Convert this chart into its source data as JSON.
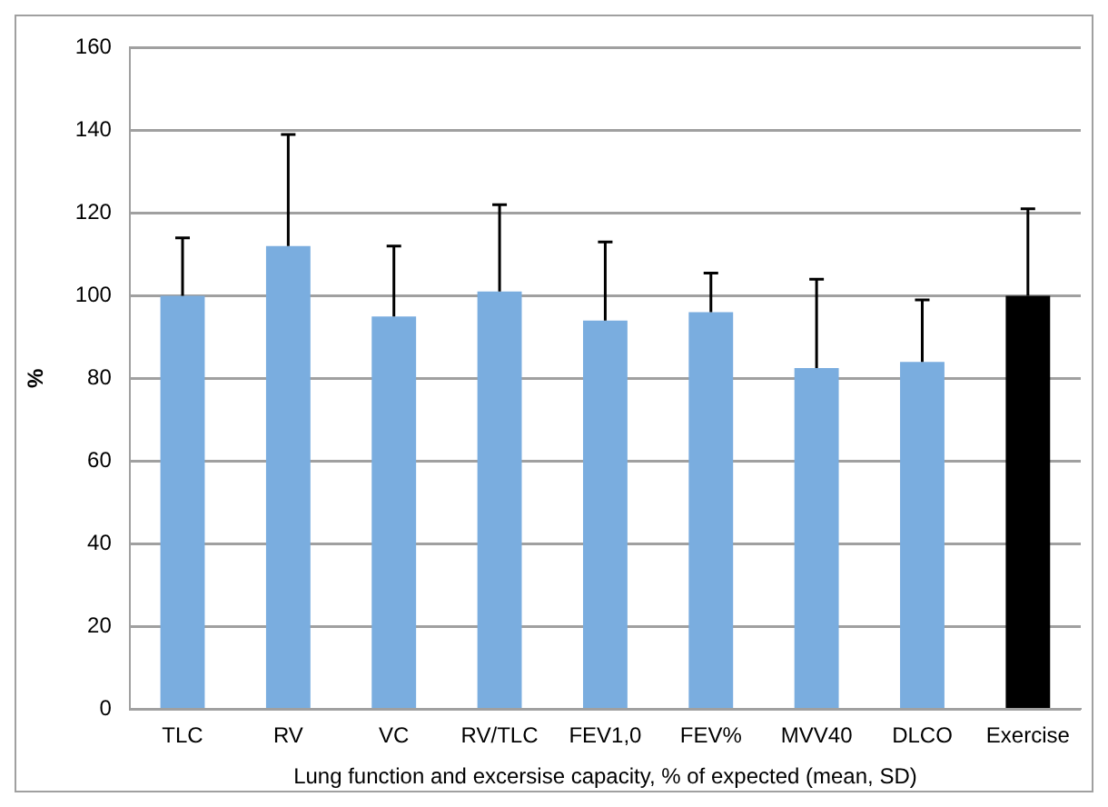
{
  "chart_data": {
    "type": "bar",
    "xlabel": "Lung function and excersise capacity, % of expected (mean, SD)",
    "ylabel": "%",
    "categories": [
      "TLC",
      "RV",
      "VC",
      "RV/TLC",
      "FEV1,0",
      "FEV%",
      "MVV40",
      "DLCO",
      "Exercise"
    ],
    "values": [
      100,
      112,
      95,
      101,
      94,
      96,
      82.5,
      84,
      100
    ],
    "errors": [
      [
        100,
        114
      ],
      [
        112,
        139
      ],
      [
        95,
        112
      ],
      [
        101,
        122
      ],
      [
        94,
        113
      ],
      [
        96,
        105.5
      ],
      [
        82.5,
        104
      ],
      [
        84,
        99
      ],
      [
        100,
        121
      ]
    ],
    "colors": [
      "#7aaddf",
      "#7aaddf",
      "#7aaddf",
      "#7aaddf",
      "#7aaddf",
      "#7aaddf",
      "#7aaddf",
      "#7aaddf",
      "#000000"
    ],
    "ylim": [
      0,
      160
    ],
    "yticks": [
      0,
      20,
      40,
      60,
      80,
      100,
      120,
      140,
      160
    ],
    "grid": "y",
    "legend": false
  }
}
